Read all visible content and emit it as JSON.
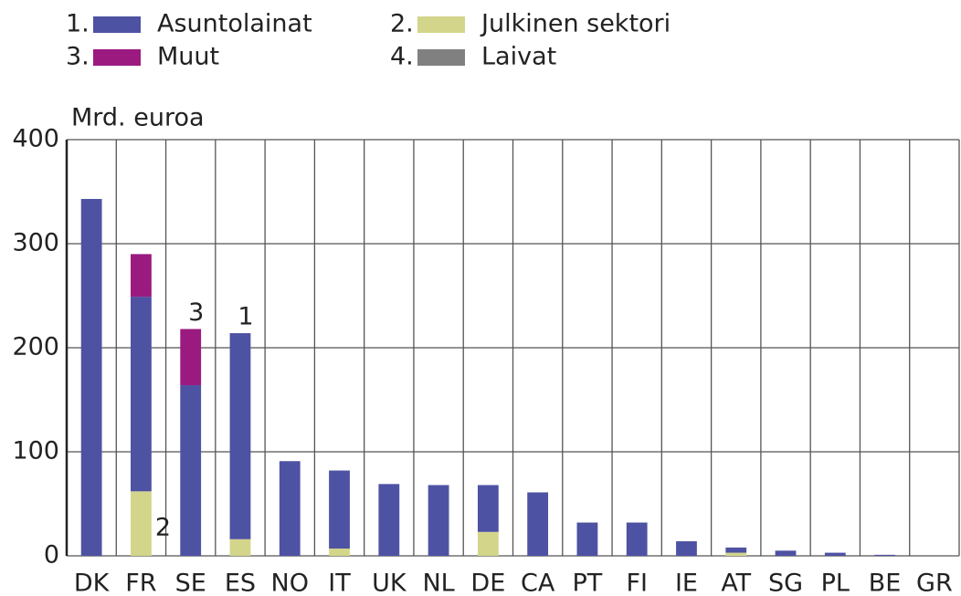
{
  "chart_data": {
    "type": "stacked_bar",
    "y_label": "Mrd. euroa",
    "categories": [
      "DK",
      "FR",
      "SE",
      "ES",
      "NO",
      "IT",
      "UK",
      "NL",
      "DE",
      "CA",
      "PT",
      "FI",
      "IE",
      "AT",
      "SG",
      "PL",
      "BE",
      "GR"
    ],
    "series": [
      {
        "marker": "1.",
        "name": "Asuntolainat",
        "color": "#4e52a3",
        "values": [
          343,
          187,
          164,
          198,
          91,
          75,
          69,
          68,
          45,
          61,
          32,
          32,
          14,
          5,
          5,
          3,
          1,
          0
        ]
      },
      {
        "marker": "2.",
        "name": "Julkinen sektori",
        "color": "#d3d58a",
        "values": [
          0,
          62,
          0,
          16,
          0,
          7,
          0,
          0,
          23,
          0,
          0,
          0,
          0,
          3,
          0,
          0,
          0,
          0
        ]
      },
      {
        "marker": "3.",
        "name": "Muut",
        "color": "#9a1a80",
        "values": [
          0,
          41,
          54,
          0,
          0,
          0,
          0,
          0,
          0,
          0,
          0,
          0,
          0,
          0,
          0,
          0,
          0,
          0
        ]
      },
      {
        "marker": "4.",
        "name": "Laivat",
        "color": "#808080",
        "values": [
          0,
          0,
          0,
          0,
          0,
          0,
          0,
          0,
          0,
          0,
          0,
          0,
          0,
          0,
          0,
          0,
          0,
          0
        ]
      }
    ],
    "stack_order": [
      1,
      0,
      2,
      3
    ],
    "annotations": [
      {
        "text": "2",
        "category": "FR"
      },
      {
        "text": "3",
        "category": "SE"
      },
      {
        "text": "1",
        "category": "ES"
      }
    ],
    "ylim": [
      0,
      400
    ],
    "yticks": [
      0,
      100,
      200,
      300,
      400
    ],
    "grid": true
  }
}
